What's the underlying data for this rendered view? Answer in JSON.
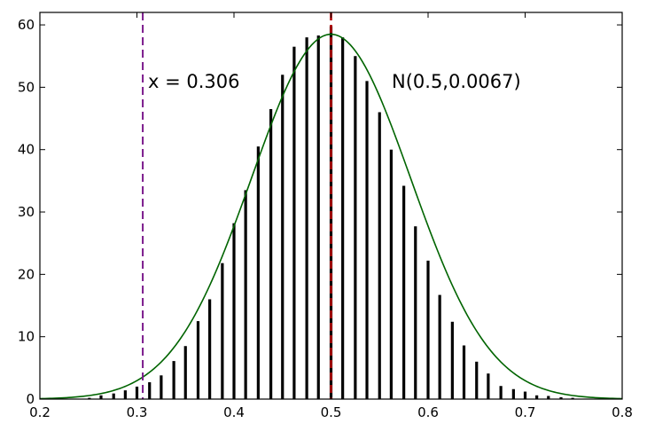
{
  "chart_data": {
    "type": "bar",
    "title": "",
    "xlabel": "",
    "ylabel": "",
    "xlim": [
      0.2,
      0.8
    ],
    "ylim": [
      0,
      62
    ],
    "grid": false,
    "x_ticks": [
      "0.2",
      "0.3",
      "0.4",
      "0.5",
      "0.6",
      "0.7",
      "0.8"
    ],
    "y_ticks": [
      "0",
      "10",
      "20",
      "30",
      "40",
      "50",
      "60"
    ],
    "bars": {
      "x": [
        0.251,
        0.263,
        0.276,
        0.288,
        0.3,
        0.313,
        0.325,
        0.338,
        0.35,
        0.363,
        0.375,
        0.388,
        0.4,
        0.412,
        0.425,
        0.438,
        0.45,
        0.462,
        0.475,
        0.487,
        0.5,
        0.512,
        0.525,
        0.537,
        0.55,
        0.562,
        0.575,
        0.587,
        0.6,
        0.612,
        0.625,
        0.637,
        0.65,
        0.662,
        0.675,
        0.688,
        0.7,
        0.712,
        0.724,
        0.737,
        0.749
      ],
      "values": [
        0.2,
        0.6,
        0.9,
        1.4,
        2.0,
        2.7,
        3.8,
        6.1,
        8.5,
        12.5,
        16.0,
        21.8,
        28.2,
        33.5,
        40.5,
        46.5,
        52.0,
        56.5,
        58.0,
        58.3,
        59.8,
        58.0,
        55.0,
        51.0,
        46.0,
        40.0,
        34.2,
        27.7,
        22.2,
        16.7,
        12.4,
        8.6,
        6.0,
        4.1,
        2.1,
        1.6,
        1.2,
        0.6,
        0.5,
        0.3,
        0.2
      ],
      "color": "#000000"
    },
    "curve": {
      "label": "N(0.5,0.0067)",
      "mean": 0.5,
      "variance": 0.0067,
      "peak": 58.5,
      "color": "#006400"
    },
    "vlines": [
      {
        "x": 0.306,
        "label": "x = 0.306",
        "color": "#7b1b8c",
        "style": "dashed"
      },
      {
        "x": 0.5,
        "label": "",
        "color": "#b00000",
        "style": "dashed"
      }
    ]
  }
}
